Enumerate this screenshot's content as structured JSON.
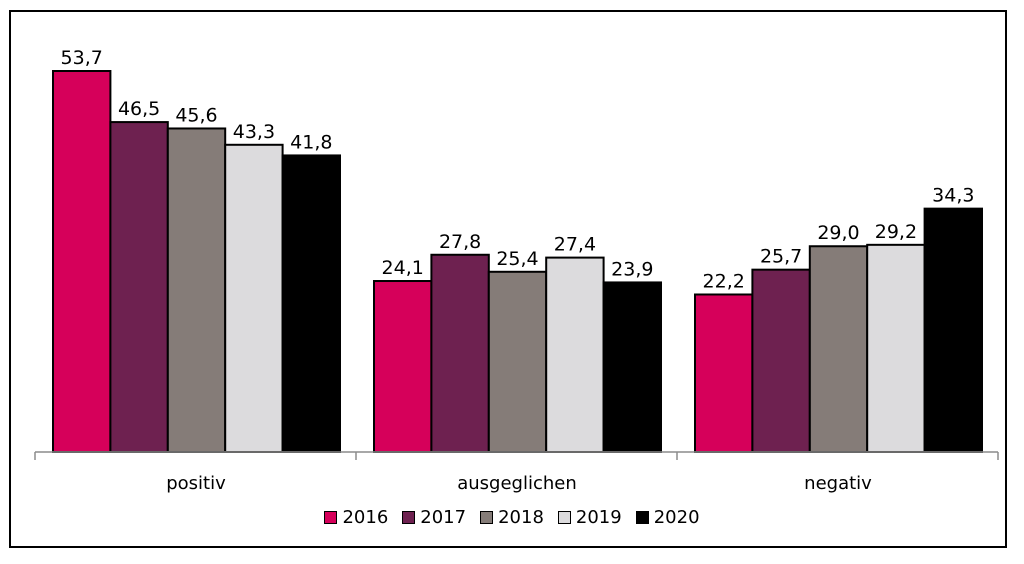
{
  "chart_data": {
    "type": "bar",
    "categories": [
      "positiv",
      "ausgeglichen",
      "negativ"
    ],
    "series": [
      {
        "name": "2016",
        "color": "#d6005a",
        "values": [
          53.7,
          24.1,
          22.2
        ],
        "labels": [
          "53,7",
          "24,1",
          "22,2"
        ]
      },
      {
        "name": "2017",
        "color": "#6e2150",
        "values": [
          46.5,
          27.8,
          25.7
        ],
        "labels": [
          "46,5",
          "27,8",
          "25,7"
        ]
      },
      {
        "name": "2018",
        "color": "#857c78",
        "values": [
          45.6,
          25.4,
          29.0
        ],
        "labels": [
          "45,6",
          "25,4",
          "29,0"
        ]
      },
      {
        "name": "2019",
        "color": "#dcdbdd",
        "values": [
          43.3,
          27.4,
          29.2
        ],
        "labels": [
          "43,3",
          "27,4",
          "29,2"
        ]
      },
      {
        "name": "2020",
        "color": "#000000",
        "values": [
          41.8,
          23.9,
          34.3
        ],
        "labels": [
          "41,8",
          "23,9",
          "34,3"
        ]
      }
    ],
    "ylim": [
      0,
      60
    ],
    "grid": false,
    "legend_position": "bottom",
    "title": "",
    "xlabel": "",
    "ylabel": ""
  }
}
